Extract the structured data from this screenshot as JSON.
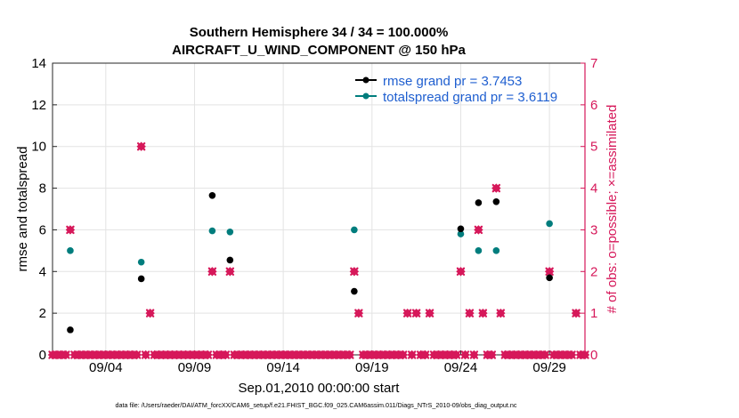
{
  "chart_data": {
    "type": "scatter",
    "title_line1": "Southern Hemisphere 34 / 34 = 100.000%",
    "title_line2": "AIRCRAFT_U_WIND_COMPONENT @ 150 hPa",
    "xlabel": "Sep.01,2010 00:00:00 start",
    "ylabel_left": "rmse and totalspread",
    "ylabel_right": "# of obs: o=possible; ×=assimilated",
    "footer": "data file: /Users/raeder/DAI/ATM_forcXX/CAM6_setup/f.e21.FHIST_BGC.f09_025.CAM6assim.011/Diags_NTrS_2010-09/obs_diag_output.nc",
    "xlim": [
      1,
      31
    ],
    "ylim_left": [
      0,
      14
    ],
    "ylim_right": [
      0,
      7
    ],
    "x_ticks": [
      {
        "x": 4,
        "label": "09/04"
      },
      {
        "x": 9,
        "label": "09/09"
      },
      {
        "x": 14,
        "label": "09/14"
      },
      {
        "x": 19,
        "label": "09/19"
      },
      {
        "x": 24,
        "label": "09/24"
      },
      {
        "x": 29,
        "label": "09/29"
      }
    ],
    "y_ticks_left": [
      "0",
      "2",
      "4",
      "6",
      "8",
      "10",
      "12",
      "14"
    ],
    "y_ticks_right": [
      "0",
      "1",
      "2",
      "3",
      "4",
      "5",
      "6",
      "7"
    ],
    "legend": {
      "location": "top-right",
      "rmse": "rmse grand pr = 3.7453",
      "totalspread": "totalspread grand pr = 3.6119"
    },
    "colors": {
      "rmse": "#000000",
      "totalspread": "#007d7d",
      "obs": "#d6185a",
      "legend_text": "#1f5fd0"
    },
    "series": [
      {
        "name": "rmse",
        "points": [
          [
            2,
            1.2
          ],
          [
            6,
            3.65
          ],
          [
            10,
            7.65
          ],
          [
            11,
            4.55
          ],
          [
            18,
            3.05
          ],
          [
            24,
            6.05
          ],
          [
            25,
            7.3
          ],
          [
            26,
            7.35
          ],
          [
            29,
            3.7
          ]
        ]
      },
      {
        "name": "totalspread",
        "points": [
          [
            2,
            5.0
          ],
          [
            6,
            4.45
          ],
          [
            10,
            5.95
          ],
          [
            11,
            5.9
          ],
          [
            18,
            6.0
          ],
          [
            24,
            5.8
          ],
          [
            25,
            5.0
          ],
          [
            26,
            5.0
          ],
          [
            29,
            6.3
          ]
        ]
      },
      {
        "name": "obs_possible",
        "axis": "right",
        "points": [
          [
            2,
            3
          ],
          [
            6,
            5
          ],
          [
            6.5,
            1
          ],
          [
            10,
            2
          ],
          [
            11,
            2
          ],
          [
            18,
            2
          ],
          [
            18.25,
            1
          ],
          [
            21,
            1
          ],
          [
            21.5,
            1
          ],
          [
            22.25,
            1
          ],
          [
            24,
            2
          ],
          [
            24.5,
            1
          ],
          [
            25,
            3
          ],
          [
            25.25,
            1
          ],
          [
            26,
            4
          ],
          [
            26.25,
            1
          ],
          [
            29,
            2
          ],
          [
            30.5,
            1
          ]
        ]
      },
      {
        "name": "obs_assimilated",
        "axis": "right",
        "points": [
          [
            2,
            3
          ],
          [
            6,
            5
          ],
          [
            6.5,
            1
          ],
          [
            10,
            2
          ],
          [
            11,
            2
          ],
          [
            18,
            2
          ],
          [
            18.25,
            1
          ],
          [
            21,
            1
          ],
          [
            21.5,
            1
          ],
          [
            22.25,
            1
          ],
          [
            24,
            2
          ],
          [
            24.5,
            1
          ],
          [
            25,
            3
          ],
          [
            25.25,
            1
          ],
          [
            26,
            4
          ],
          [
            26.25,
            1
          ],
          [
            29,
            2
          ],
          [
            30.5,
            1
          ]
        ]
      }
    ],
    "zero_obs_bins_step_days": 0.25
  }
}
